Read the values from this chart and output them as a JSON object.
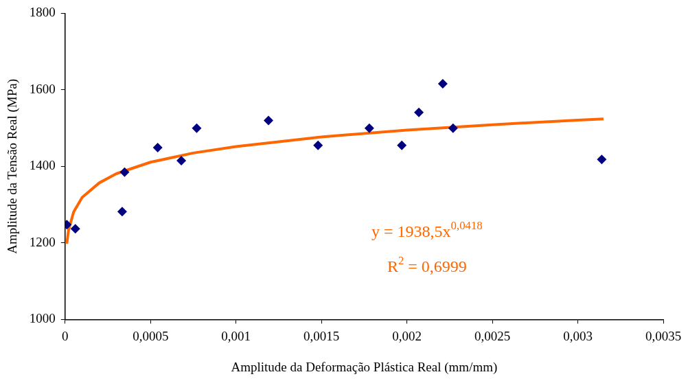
{
  "chart_data": {
    "type": "scatter",
    "xlabel": "Amplitude da Deformação Plástica Real (mm/mm)",
    "ylabel": "Amplitude da Tensão Real (MPa)",
    "xlim": [
      0,
      0.0035
    ],
    "ylim": [
      1000,
      1800
    ],
    "xticks": [
      0,
      {
        "value": 0.0005,
        "label": "0,0005"
      },
      {
        "value": 0.001,
        "label": "0,001"
      },
      {
        "value": 0.0015,
        "label": "0,0015"
      },
      {
        "value": 0.002,
        "label": "0,002"
      },
      {
        "value": 0.0025,
        "label": "0,0025"
      },
      {
        "value": 0.003,
        "label": "0,003"
      },
      {
        "value": 0.0035,
        "label": "0,0035"
      }
    ],
    "yticks": [
      1000,
      1200,
      1400,
      1600,
      1800
    ],
    "grid": false,
    "legend": false,
    "marker": "diamond",
    "series": [
      {
        "color": "#000080",
        "x": [
          1e-05,
          6e-05,
          0.000334,
          0.000348,
          0.000542,
          0.00068,
          0.00077,
          0.00119,
          0.00148,
          0.00178,
          0.00197,
          0.00207,
          0.00221,
          0.00227,
          0.00314
        ],
        "values": [
          1248,
          1237,
          1282,
          1385,
          1449,
          1415,
          1500,
          1520,
          1455,
          1500,
          1455,
          1541,
          1616,
          1500,
          1418
        ]
      },
      {
        "type": "line",
        "color": "#ff6600",
        "marker": "none",
        "x": [
          1e-05,
          2e-05,
          5e-05,
          0.0001,
          0.0002,
          0.0003,
          0.0005,
          0.00075,
          0.001,
          0.0015,
          0.002,
          0.0025,
          0.003,
          0.00315
        ],
        "values": [
          1198,
          1233,
          1281,
          1319,
          1357,
          1381,
          1411,
          1435,
          1452,
          1477,
          1495,
          1509,
          1521,
          1524
        ]
      }
    ],
    "annotations": [
      "y = 1938,5x$^{0,0418}$",
      "R$^{2}$ = 0,6999"
    ]
  }
}
